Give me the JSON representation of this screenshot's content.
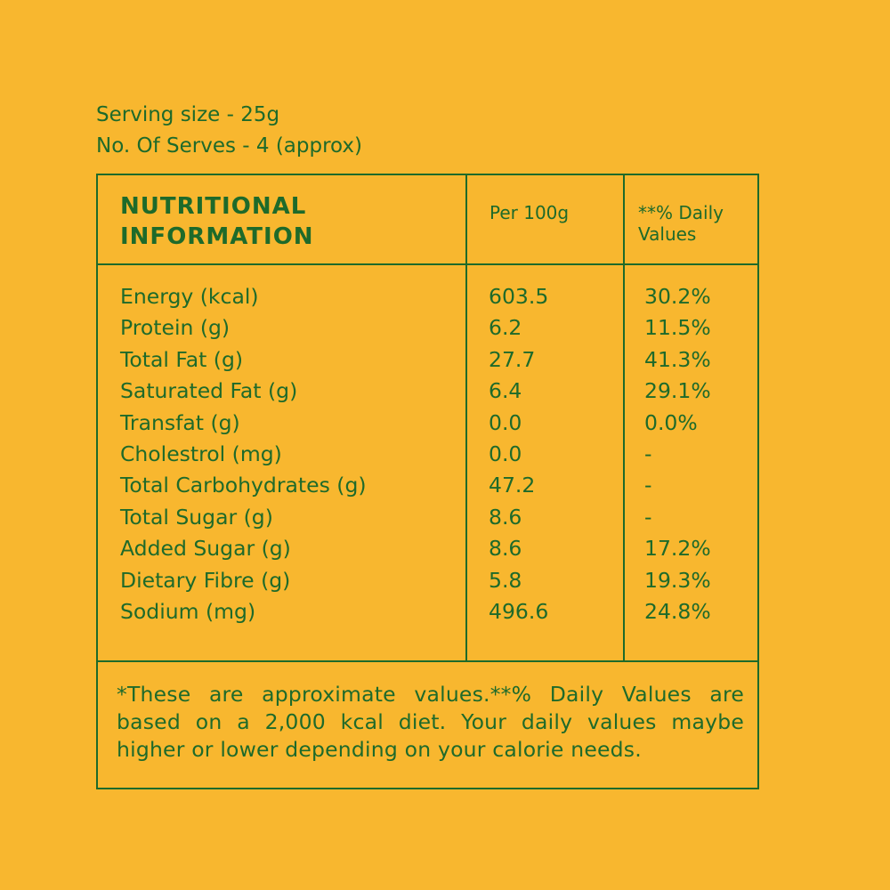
{
  "serving": {
    "size": "Serving size - 25g",
    "serves": "No. Of Serves - 4 (approx)"
  },
  "table": {
    "title": "NUTRITIONAL INFORMATION",
    "col_per": "Per 100g",
    "col_dv": "**% Daily Values",
    "rows": [
      {
        "name": "Energy (kcal)",
        "per100g": "603.5",
        "dv": "30.2%"
      },
      {
        "name": "Protein (g)",
        "per100g": "6.2",
        "dv": "11.5%"
      },
      {
        "name": "Total Fat (g)",
        "per100g": "27.7",
        "dv": "41.3%"
      },
      {
        "name": "Saturated Fat (g)",
        "per100g": "6.4",
        "dv": "29.1%"
      },
      {
        "name": "Transfat (g)",
        "per100g": "0.0",
        "dv": "0.0%"
      },
      {
        "name": "Cholestrol (mg)",
        "per100g": "0.0",
        "dv": "-"
      },
      {
        "name": "Total Carbohydrates (g)",
        "per100g": "47.2",
        "dv": "-"
      },
      {
        "name": "Total Sugar (g)",
        "per100g": "8.6",
        "dv": "-"
      },
      {
        "name": "Added Sugar (g)",
        "per100g": "8.6",
        "dv": "17.2%"
      },
      {
        "name": "Dietary Fibre (g)",
        "per100g": "5.8",
        "dv": "19.3%"
      },
      {
        "name": "Sodium (mg)",
        "per100g": "496.6",
        "dv": "24.8%"
      }
    ],
    "footnote": "*These are approximate values.**% Daily Values are based on a 2,000 kcal diet. Your daily values maybe higher or lower depending on your calorie needs."
  },
  "colors": {
    "background": "#F8B72F",
    "text": "#1E6A2A"
  }
}
